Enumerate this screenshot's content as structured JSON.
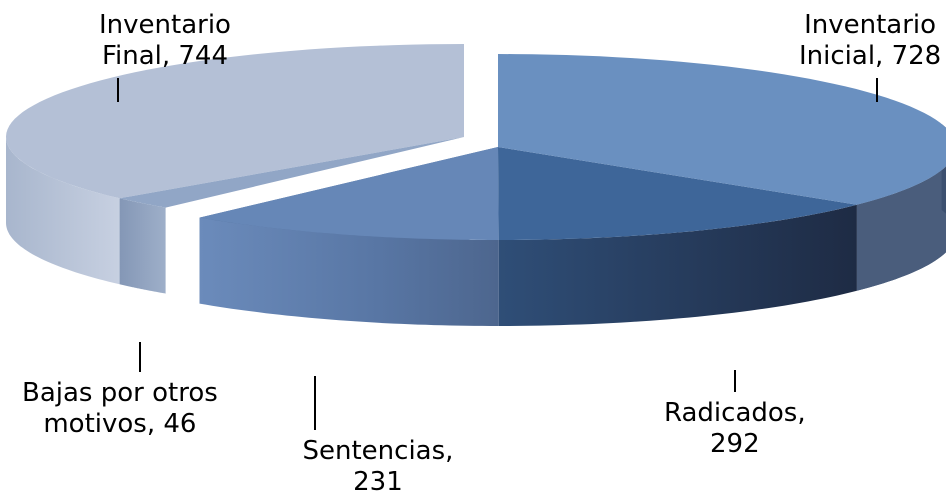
{
  "chart_data": {
    "type": "pie",
    "style": "3d-exploded",
    "slices": [
      {
        "category": "Inventario Inicial",
        "value": 728,
        "color": "#6a90c0",
        "label_lines": [
          "Inventario",
          "Inicial, 728"
        ]
      },
      {
        "category": "Radicados",
        "value": 292,
        "color": "#3e6699",
        "label_lines": [
          "Radicados,",
          "292"
        ]
      },
      {
        "category": "Sentencias",
        "value": 231,
        "color": "#6687b7",
        "label_lines": [
          "Sentencias,",
          "231"
        ]
      },
      {
        "category": "Bajas por otros motivos",
        "value": 46,
        "color": "#91a6c6",
        "label_lines": [
          "Bajas por otros",
          "motivos, 46"
        ]
      },
      {
        "category": "Inventario Final",
        "value": 744,
        "color": "#b4c0d6",
        "label_lines": [
          "Inventario",
          "Final, 744"
        ]
      }
    ],
    "title": "",
    "legend": "none",
    "data_labels": "category, value"
  }
}
